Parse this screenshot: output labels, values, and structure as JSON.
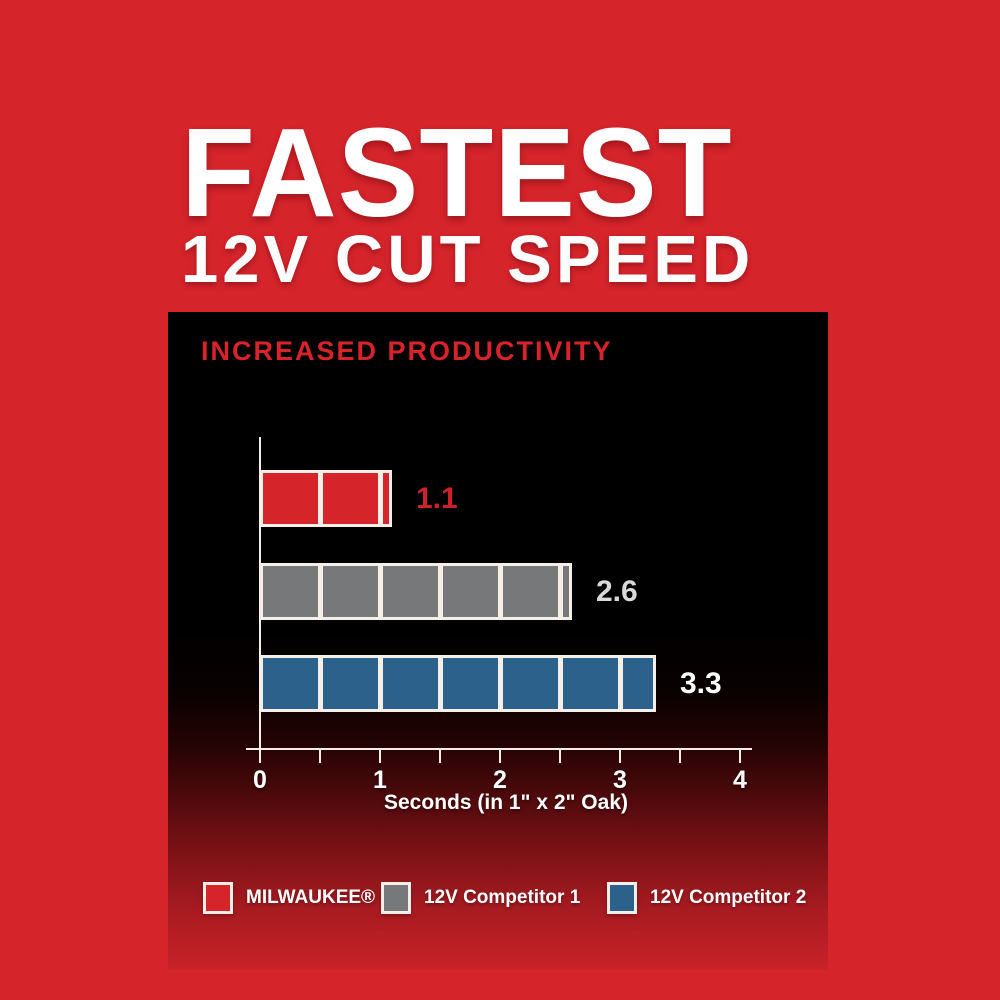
{
  "title": {
    "line1": "FASTEST",
    "line2": "12V CUT SPEED"
  },
  "panel": {
    "heading": "INCREASED PRODUCTIVITY"
  },
  "chart_data": {
    "type": "bar",
    "orientation": "horizontal",
    "title": "INCREASED PRODUCTIVITY",
    "xlabel": "Seconds (in 1\" x 2\" Oak)",
    "xlim": [
      0,
      4
    ],
    "x_major_ticks": [
      0,
      1,
      2,
      3,
      4
    ],
    "x_minor_tick_step": 0.5,
    "bar_segment_interval": 0.5,
    "grid": false,
    "legend_position": "bottom",
    "series": [
      {
        "name": "MILWAUKEE®",
        "value": 1.1,
        "value_label": "1.1",
        "color": "#d6242b",
        "value_label_color": "#cc2127"
      },
      {
        "name": "12V Competitor 1",
        "value": 2.6,
        "value_label": "2.6",
        "color": "#77787a",
        "value_label_color": "#d9d9d9"
      },
      {
        "name": "12V Competitor 2",
        "value": 3.3,
        "value_label": "3.3",
        "color": "#2b618a",
        "value_label_color": "#ffffff"
      }
    ]
  },
  "colors": {
    "background_red": "#d6242b",
    "panel_black": "#000000",
    "panel_bottom_fade": "#c92228",
    "axis_white": "#f6efe8",
    "heading_red": "#d8232a"
  }
}
